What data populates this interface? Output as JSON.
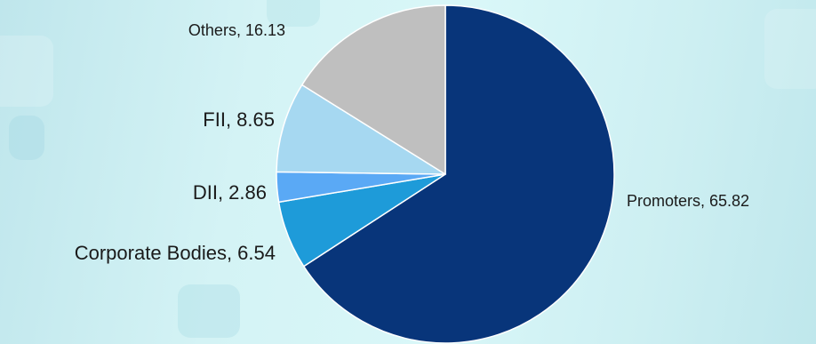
{
  "chart_data": {
    "type": "pie",
    "title": "",
    "slices": [
      {
        "label": "Promoters",
        "value": 65.82,
        "color": "#08357a",
        "display": "Promoters, 65.82"
      },
      {
        "label": "Corporate Bodies",
        "value": 6.54,
        "color": "#1e9bd9",
        "display": "Corporate Bodies, 6.54"
      },
      {
        "label": "DII",
        "value": 2.86,
        "color": "#5aa9f5",
        "display": "DII, 2.86"
      },
      {
        "label": "FII",
        "value": 8.65,
        "color": "#a6d8f1",
        "display": "FII, 8.65"
      },
      {
        "label": "Others",
        "value": 16.13,
        "color": "#bfbfbf",
        "display": "Others, 16.13"
      }
    ],
    "start_angle": "12 o'clock",
    "direction": "clockwise",
    "legend": "none (data labels beside slices)"
  }
}
